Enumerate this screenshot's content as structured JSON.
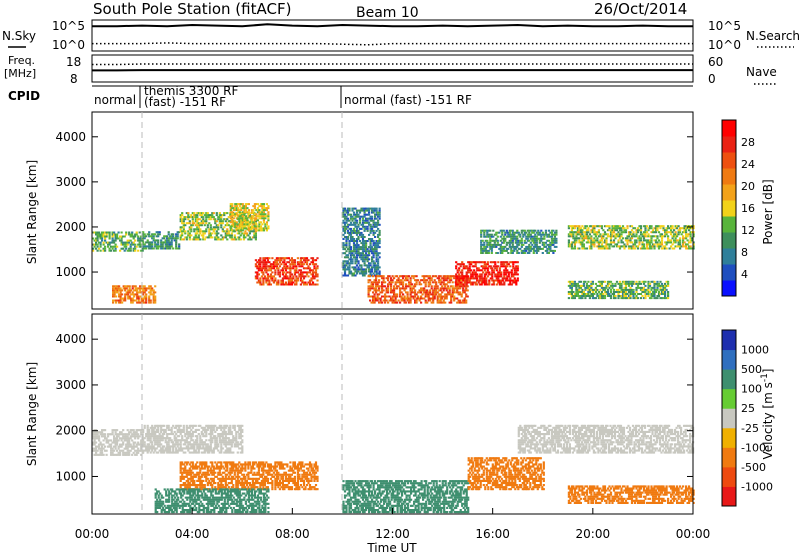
{
  "header": {
    "title": "South Pole Station (fitACF)",
    "beam": "Beam 10",
    "date": "26/Oct/2014"
  },
  "noise_panel": {
    "left_label": "N.Sky",
    "right_label": "N.Search",
    "left_ticks": [
      "10^5",
      "10^0"
    ],
    "right_ticks": [
      "10^5",
      "10^0"
    ],
    "sky_level_log10": [
      4.0,
      4.0,
      4.1,
      4.0,
      4.2,
      4.1,
      4.0,
      4.3,
      4.1,
      4.0,
      4.2,
      4.1,
      4.0,
      4.0,
      4.1,
      4.0,
      4.1,
      4.2,
      4.0,
      4.1,
      4.0,
      4.0,
      4.1,
      4.0,
      4.0
    ],
    "search_level_log10": [
      1.2,
      1.2,
      1.2,
      1.3,
      1.2,
      1.2,
      1.2,
      1.2,
      1.2,
      1.2,
      1.1,
      1.0,
      1.2,
      1.2,
      1.2,
      1.2,
      1.2,
      1.2,
      1.2,
      1.2,
      1.2,
      1.2,
      1.2,
      1.2,
      1.2
    ]
  },
  "freq_panel": {
    "left_label_1": "Freq.",
    "left_label_2": "[MHz]",
    "right_label": "Nave",
    "left_ticks": [
      "18",
      "8"
    ],
    "right_ticks": [
      "60",
      "0"
    ],
    "freq_mhz": [
      12.3,
      12.3,
      12.4,
      12.4,
      12.4,
      12.4,
      12.4,
      12.4,
      12.4,
      12.4,
      12.4,
      12.4,
      12.4,
      12.4,
      12.4,
      12.4,
      12.4,
      12.4,
      12.4,
      12.4,
      12.4,
      12.4,
      12.4,
      12.4,
      12.4
    ],
    "nave": [
      39,
      39,
      40,
      40,
      40,
      40,
      40,
      40,
      40,
      40,
      40,
      40,
      40,
      40,
      40,
      40,
      40,
      40,
      40,
      40,
      40,
      40,
      40,
      40,
      40
    ]
  },
  "cpid_panel": {
    "label": "CPID",
    "segments": [
      {
        "start_hour": 0.0,
        "end_hour": 2.0,
        "line1": "normal",
        "line2": ""
      },
      {
        "start_hour": 2.0,
        "end_hour": 10.0,
        "line1": "themis 3300 RF",
        "line2": "(fast) -151 RF"
      },
      {
        "start_hour": 10.0,
        "end_hour": 24.0,
        "line1": "normal (fast) -151 RF",
        "line2": ""
      }
    ]
  },
  "chart_data": [
    {
      "type": "heatmap",
      "title": "",
      "xlabel": "",
      "ylabel": "Slant Range [km]",
      "xlim": [
        0,
        24
      ],
      "ylim": [
        180,
        4550
      ],
      "yticks": [
        1000,
        2000,
        3000,
        4000
      ],
      "colorbar": {
        "label": "Power [dB]",
        "ticks": [
          "4",
          "8",
          "12",
          "16",
          "20",
          "24",
          "28"
        ],
        "colors": [
          "#0a10ff",
          "#1f4fbf",
          "#2f7f9a",
          "#3e8f5c",
          "#58b43b",
          "#f2d21a",
          "#f3a21a",
          "#ef7a12",
          "#ee5010",
          "#ea2214",
          "#ff0000"
        ]
      },
      "scatter_clusters": [
        {
          "t0": 0.0,
          "t1": 2.0,
          "r0": 1450,
          "r1": 1900,
          "value": 12
        },
        {
          "t0": 2.0,
          "t1": 3.5,
          "r0": 1500,
          "r1": 1900,
          "value": 10
        },
        {
          "t0": 3.5,
          "t1": 6.5,
          "r0": 1700,
          "r1": 2300,
          "value": 14
        },
        {
          "t0": 5.5,
          "t1": 7.0,
          "r0": 1900,
          "r1": 2500,
          "value": 16
        },
        {
          "t0": 6.5,
          "t1": 9.0,
          "r0": 700,
          "r1": 1300,
          "value": 26
        },
        {
          "t0": 10.0,
          "t1": 11.5,
          "r0": 900,
          "r1": 2400,
          "value": 8
        },
        {
          "t0": 11.0,
          "t1": 15.0,
          "r0": 300,
          "r1": 900,
          "value": 24
        },
        {
          "t0": 14.5,
          "t1": 17.0,
          "r0": 700,
          "r1": 1200,
          "value": 28
        },
        {
          "t0": 15.5,
          "t1": 18.5,
          "r0": 1400,
          "r1": 1900,
          "value": 10
        },
        {
          "t0": 19.0,
          "t1": 24.0,
          "r0": 1500,
          "r1": 2000,
          "value": 14
        },
        {
          "t0": 19.0,
          "t1": 23.0,
          "r0": 400,
          "r1": 800,
          "value": 12
        },
        {
          "t0": 0.8,
          "t1": 2.5,
          "r0": 300,
          "r1": 700,
          "value": 22
        }
      ]
    },
    {
      "type": "heatmap",
      "title": "",
      "xlabel": "Time UT",
      "ylabel": "Slant Range [km]",
      "xlim": [
        0,
        24
      ],
      "ylim": [
        180,
        4550
      ],
      "yticks": [
        1000,
        2000,
        3000,
        4000
      ],
      "xticks": [
        "00:00",
        "04:00",
        "08:00",
        "12:00",
        "16:00",
        "20:00",
        "00:00"
      ],
      "colorbar": {
        "label": "Velocity [m s^-1]",
        "ticks": [
          "1000",
          "500",
          "100",
          "25",
          "-25",
          "-100",
          "-500",
          "-1000"
        ],
        "colors": [
          "#1e2fae",
          "#2f6fbf",
          "#3e8f6f",
          "#66cc33",
          "#c8c8c0",
          "#f0b000",
          "#f07a10",
          "#ee4a10",
          "#e81818"
        ]
      },
      "scatter_clusters": [
        {
          "t0": 0.0,
          "t1": 2.0,
          "r0": 1450,
          "r1": 2000,
          "value": 0
        },
        {
          "t0": 2.0,
          "t1": 6.0,
          "r0": 1500,
          "r1": 2100,
          "value": 0
        },
        {
          "t0": 3.5,
          "t1": 9.0,
          "r0": 700,
          "r1": 1300,
          "value": -300
        },
        {
          "t0": 2.5,
          "t1": 7.0,
          "r0": 200,
          "r1": 700,
          "value": 300
        },
        {
          "t0": 10.0,
          "t1": 15.0,
          "r0": 200,
          "r1": 900,
          "value": 400
        },
        {
          "t0": 15.0,
          "t1": 18.0,
          "r0": 700,
          "r1": 1400,
          "value": -200
        },
        {
          "t0": 17.0,
          "t1": 24.0,
          "r0": 1500,
          "r1": 2100,
          "value": 0
        },
        {
          "t0": 19.0,
          "t1": 24.0,
          "r0": 400,
          "r1": 800,
          "value": -400
        }
      ]
    }
  ]
}
